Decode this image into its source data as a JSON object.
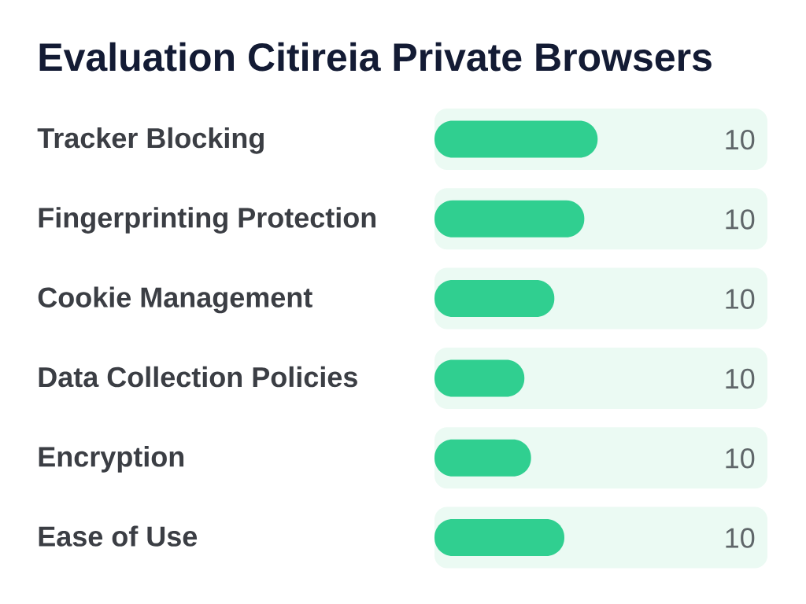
{
  "chart_data": {
    "type": "bar",
    "orientation": "horizontal",
    "title": "Evaluation Citireia Private Browsers",
    "categories": [
      "Tracker Blocking",
      "Fingerprinting Protection",
      "Cookie Management",
      "Data Collection Policies",
      "Encryption",
      "Ease of Use"
    ],
    "series": [
      {
        "color": "#ebfaf3",
        "values": [
          10,
          10,
          10,
          10,
          10,
          10
        ],
        "value_labels": [
          "10",
          "10",
          "10",
          "10",
          "10",
          "10"
        ]
      },
      {
        "color": "#30cf90",
        "values": [
          4.9,
          4.5,
          3.6,
          2.7,
          2.9,
          3.9
        ]
      }
    ],
    "xlim": [
      0,
      10
    ],
    "tick_labels": "y"
  }
}
